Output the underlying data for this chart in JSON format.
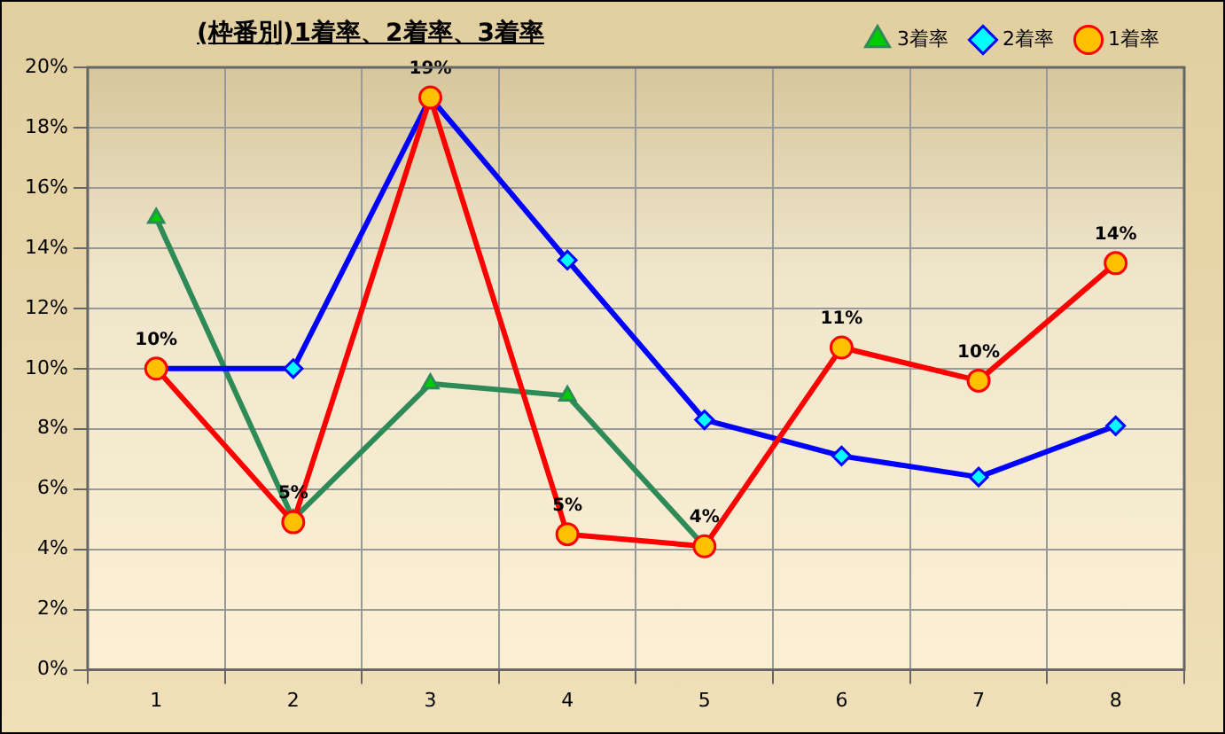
{
  "chart_data": {
    "type": "line",
    "title": "(枠番別)1着率、2着率、3着率",
    "categories": [
      "1",
      "2",
      "3",
      "4",
      "5",
      "6",
      "7",
      "8"
    ],
    "series": [
      {
        "name": "3着率",
        "color": "#2e8b57",
        "marker": "triangle",
        "values": [
          15.0,
          5.0,
          9.5,
          9.1,
          4.1,
          null,
          null,
          null
        ]
      },
      {
        "name": "2着率",
        "color": "#0000ff",
        "marker": "diamond",
        "values": [
          10.0,
          10.0,
          19.0,
          13.6,
          8.3,
          7.1,
          6.4,
          8.1
        ]
      },
      {
        "name": "1着率",
        "color": "#ff0000",
        "marker": "circle",
        "values": [
          10.0,
          4.9,
          19.0,
          4.5,
          4.1,
          10.7,
          9.6,
          13.5
        ],
        "value_labels": [
          "10%",
          "5%",
          "19%",
          "5%",
          "4%",
          "11%",
          "10%",
          "14%"
        ]
      }
    ],
    "ylim": [
      0,
      20
    ],
    "yticks": [
      {
        "value": 0,
        "label": "0%"
      },
      {
        "value": 2,
        "label": "2%"
      },
      {
        "value": 4,
        "label": "4%"
      },
      {
        "value": 6,
        "label": "6%"
      },
      {
        "value": 8,
        "label": "8%"
      },
      {
        "value": 10,
        "label": "10%"
      },
      {
        "value": 12,
        "label": "12%"
      },
      {
        "value": 14,
        "label": "14%"
      },
      {
        "value": 16,
        "label": "16%"
      },
      {
        "value": 18,
        "label": "18%"
      },
      {
        "value": 20,
        "label": "20%"
      }
    ],
    "grid": true,
    "legend": "top right",
    "line_style": "solid"
  }
}
